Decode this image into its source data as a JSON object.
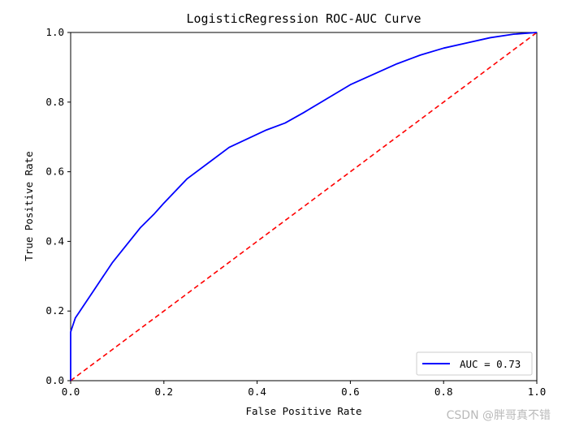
{
  "chart_data": {
    "type": "line",
    "title": "LogisticRegression ROC-AUC Curve",
    "xlabel": "False Positive Rate",
    "ylabel": "True Positive Rate",
    "xlim": [
      0.0,
      1.0
    ],
    "ylim": [
      0.0,
      1.0
    ],
    "xticks": [
      "0.0",
      "0.2",
      "0.4",
      "0.6",
      "0.8",
      "1.0"
    ],
    "yticks": [
      "0.0",
      "0.2",
      "0.4",
      "0.6",
      "0.8",
      "1.0"
    ],
    "grid": false,
    "legend_position": "lower-right",
    "series": [
      {
        "name": "AUC = 0.73",
        "color": "#0000ff",
        "style": "solid",
        "x": [
          0.0,
          0.0,
          0.005,
          0.01,
          0.02,
          0.03,
          0.05,
          0.07,
          0.09,
          0.12,
          0.15,
          0.18,
          0.2,
          0.25,
          0.3,
          0.34,
          0.38,
          0.42,
          0.46,
          0.5,
          0.55,
          0.6,
          0.65,
          0.7,
          0.75,
          0.8,
          0.85,
          0.9,
          0.95,
          1.0
        ],
        "y": [
          0.0,
          0.14,
          0.16,
          0.18,
          0.2,
          0.22,
          0.26,
          0.3,
          0.34,
          0.39,
          0.44,
          0.48,
          0.51,
          0.58,
          0.63,
          0.67,
          0.695,
          0.72,
          0.74,
          0.77,
          0.81,
          0.85,
          0.88,
          0.91,
          0.935,
          0.955,
          0.97,
          0.985,
          0.995,
          1.0
        ]
      },
      {
        "name": "",
        "color": "#ff0000",
        "style": "dashed",
        "x": [
          0.0,
          1.0
        ],
        "y": [
          0.0,
          1.0
        ]
      }
    ],
    "legend": [
      {
        "label": "AUC = 0.73",
        "color": "#0000ff"
      }
    ]
  },
  "watermark": "CSDN @胖哥真不错"
}
